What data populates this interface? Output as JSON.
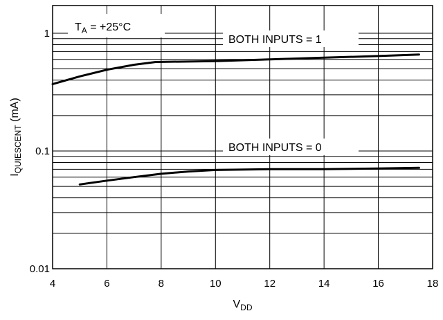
{
  "chart_data": {
    "type": "line",
    "title": "",
    "annotation": {
      "main": "T",
      "sub": "A",
      "rest": " = +25°C"
    },
    "xlabel": {
      "main": "V",
      "sub": "DD"
    },
    "ylabel": {
      "main": "I",
      "sub": "QUIESCENT",
      "rest": " (mA)"
    },
    "xlim": [
      4,
      18
    ],
    "ylim": [
      0.01,
      2
    ],
    "yscale": "log",
    "grid": true,
    "x_ticks": [
      "4",
      "6",
      "8",
      "10",
      "12",
      "14",
      "16",
      "18"
    ],
    "y_ticks": [
      "0.01",
      "0.1",
      "1"
    ],
    "series": [
      {
        "name": "BOTH INPUTS = 1",
        "x": [
          4,
          5,
          6,
          7,
          7.8,
          10,
          12,
          14,
          16,
          17.5
        ],
        "y": [
          0.37,
          0.43,
          0.49,
          0.54,
          0.57,
          0.58,
          0.6,
          0.62,
          0.64,
          0.66
        ]
      },
      {
        "name": "BOTH INPUTS = 0",
        "x": [
          5,
          6,
          7,
          8,
          9,
          10,
          12,
          14,
          16,
          17.5
        ],
        "y": [
          0.052,
          0.056,
          0.06,
          0.064,
          0.067,
          0.069,
          0.07,
          0.07,
          0.071,
          0.072
        ]
      }
    ]
  }
}
